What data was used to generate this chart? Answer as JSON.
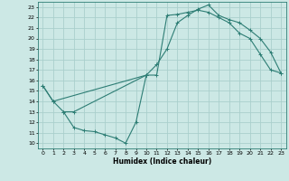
{
  "title": "",
  "xlabel": "Humidex (Indice chaleur)",
  "ylabel": "",
  "bg_color": "#cce8e5",
  "line_color": "#2d7d74",
  "grid_color": "#aacfcc",
  "xlim": [
    -0.5,
    23.5
  ],
  "ylim": [
    9.5,
    23.5
  ],
  "xticks": [
    0,
    1,
    2,
    3,
    4,
    5,
    6,
    7,
    8,
    9,
    10,
    11,
    12,
    13,
    14,
    15,
    16,
    17,
    18,
    19,
    20,
    21,
    22,
    23
  ],
  "yticks": [
    10,
    11,
    12,
    13,
    14,
    15,
    16,
    17,
    18,
    19,
    20,
    21,
    22,
    23
  ],
  "curve1_x": [
    0,
    1,
    2,
    3,
    10,
    11,
    12,
    13,
    14,
    15,
    16,
    17,
    18,
    19,
    20,
    21,
    22,
    23
  ],
  "curve1_y": [
    15.5,
    14.0,
    13.0,
    13.0,
    16.5,
    16.5,
    22.2,
    22.3,
    22.5,
    22.7,
    22.5,
    22.0,
    21.5,
    20.5,
    20.0,
    18.5,
    17.0,
    16.7
  ],
  "curve2_x": [
    0,
    1,
    10,
    11,
    12,
    13,
    14,
    15,
    16,
    17,
    18,
    19,
    20,
    21,
    22,
    23
  ],
  "curve2_y": [
    15.5,
    14.0,
    16.5,
    17.5,
    19.0,
    21.5,
    22.2,
    22.8,
    23.2,
    22.2,
    21.8,
    21.5,
    20.8,
    20.0,
    18.7,
    16.7
  ],
  "curve3_x": [
    2,
    3,
    4,
    5,
    6,
    7,
    8,
    9,
    10
  ],
  "curve3_y": [
    13.0,
    11.5,
    11.2,
    11.1,
    10.8,
    10.5,
    10.0,
    12.0,
    16.5
  ],
  "xlabel_fontsize": 5.5,
  "tick_fontsize": 4.5,
  "linewidth": 0.8,
  "markersize": 2.5
}
